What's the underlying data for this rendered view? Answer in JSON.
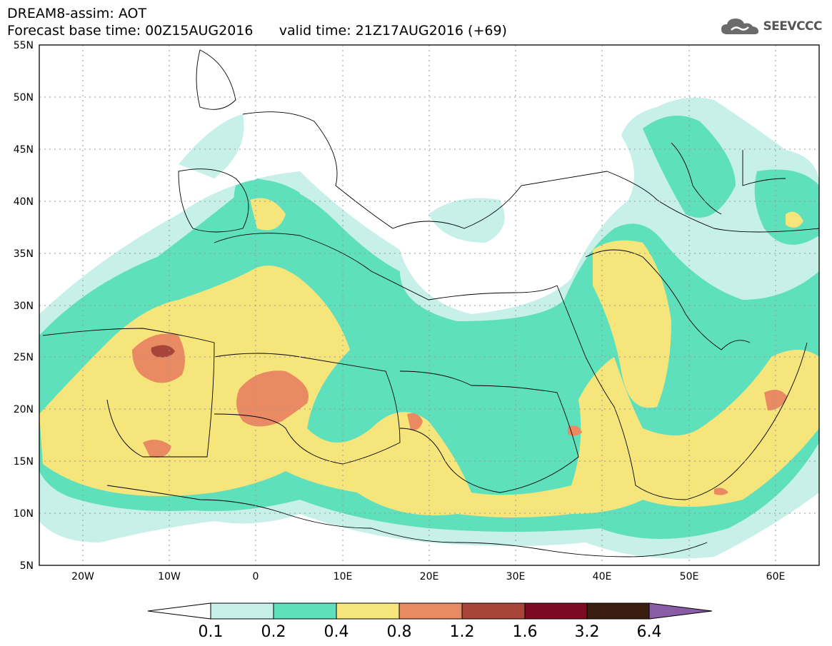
{
  "header": {
    "line1": "DREAM8-assim: AOT",
    "line2": "Forecast base time: 00Z15AUG2016      valid time: 21Z17AUG2016 (+69)"
  },
  "logo": {
    "text": "SEEVCCC",
    "icon": "cloud-icon"
  },
  "map": {
    "lon_range": [
      -25,
      65
    ],
    "lat_range": [
      5,
      55
    ],
    "lat_ticks": [
      "5N",
      "10N",
      "15N",
      "20N",
      "25N",
      "30N",
      "35N",
      "40N",
      "45N",
      "50N",
      "55N"
    ],
    "lon_ticks": [
      "20W",
      "10W",
      "0",
      "10E",
      "20E",
      "30E",
      "40E",
      "50E",
      "60E"
    ],
    "grid": "dotted"
  },
  "colorbar": {
    "levels": [
      "0.1",
      "0.2",
      "0.4",
      "0.8",
      "1.2",
      "1.6",
      "3.2",
      "6.4"
    ],
    "colors": [
      "#ffffff",
      "#c6f0e8",
      "#5fe0bc",
      "#f6e57a",
      "#ea8a62",
      "#a8443a",
      "#7c0a22",
      "#3c1e10",
      "#8a5ca6"
    ]
  }
}
